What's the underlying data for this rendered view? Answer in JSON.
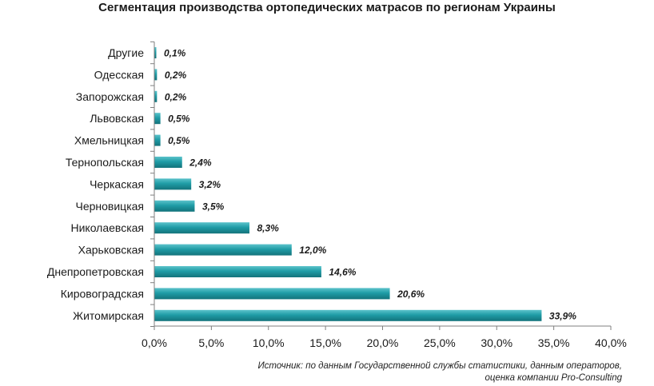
{
  "chart_data": {
    "type": "bar",
    "orientation": "horizontal",
    "title": "Сегментация производства ортопедических матрасов по регионам Украины",
    "categories": [
      "Другие",
      "Одесская",
      "Запорожская",
      "Львовская",
      "Хмельницкая",
      "Тернопольская",
      "Черкаская",
      "Черновицкая",
      "Николаевская",
      "Харьковская",
      "Днепропетровская",
      "Кировоградская",
      "Житомирская"
    ],
    "values": [
      0.1,
      0.2,
      0.2,
      0.5,
      0.5,
      2.4,
      3.2,
      3.5,
      8.3,
      12.0,
      14.6,
      20.6,
      33.9
    ],
    "value_labels": [
      "0,1%",
      "0,2%",
      "0,2%",
      "0,5%",
      "0,5%",
      "2,4%",
      "3,2%",
      "3,5%",
      "8,3%",
      "12,0%",
      "14,6%",
      "20,6%",
      "33,9%"
    ],
    "xlim": [
      0,
      40
    ],
    "xticks": [
      0,
      5,
      10,
      15,
      20,
      25,
      30,
      35,
      40
    ],
    "xtick_labels": [
      "0,0%",
      "5,0%",
      "10,0%",
      "15,0%",
      "20,0%",
      "25,0%",
      "30,0%",
      "35,0%",
      "40,0%"
    ],
    "grid": false,
    "legend": "none",
    "bar_color": "#1f9ca6"
  },
  "source_note": {
    "line1": "Источник: по данным Государственной службы статистики, данным операторов,",
    "line2": "оценка компании Pro-Consulting"
  }
}
